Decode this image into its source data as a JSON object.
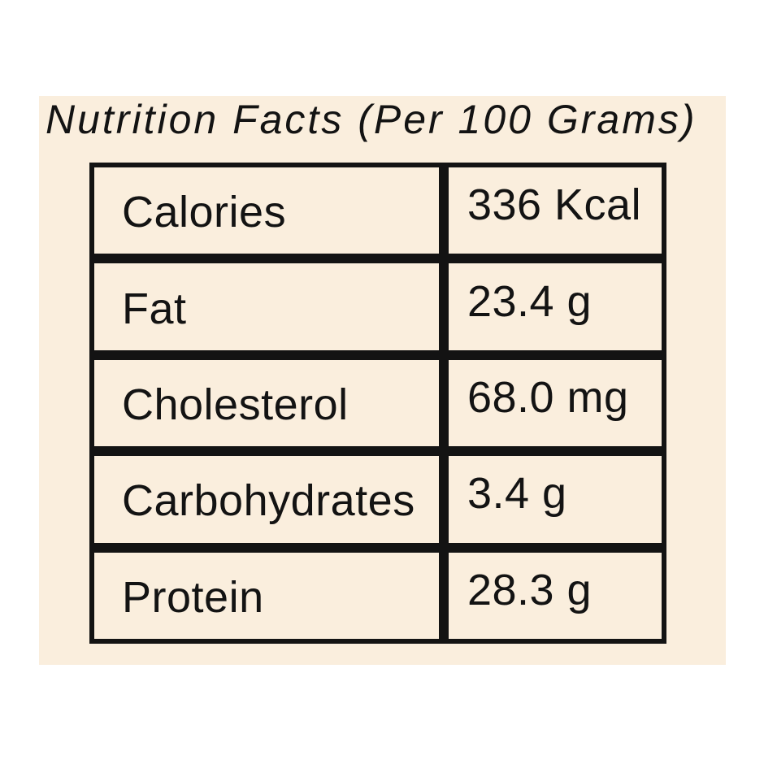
{
  "title": "Nutrition Facts (Per 100 Grams)",
  "colors": {
    "canvas": "#ffffff",
    "card": "#faeedd",
    "line": "#131313",
    "text": "#131313"
  },
  "table": {
    "rows": [
      {
        "label": "Calories",
        "value": "336 Kcal"
      },
      {
        "label": "Fat",
        "value": "23.4 g"
      },
      {
        "label": "Cholesterol",
        "value": "68.0 mg"
      },
      {
        "label": "Carbohydrates",
        "value": "3.4 g"
      },
      {
        "label": "Protein",
        "value": "28.3 g"
      }
    ]
  }
}
